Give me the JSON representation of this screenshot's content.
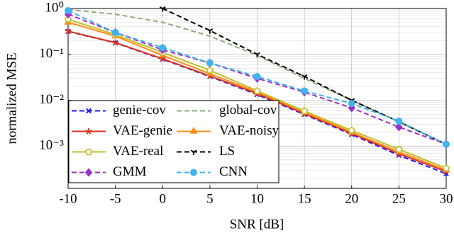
{
  "chart_data": {
    "type": "line",
    "xlabel": "SNR [dB]",
    "ylabel": "normalized MSE",
    "x": [
      -10,
      -5,
      0,
      5,
      10,
      15,
      20,
      25,
      30
    ],
    "xlim": [
      -10,
      30
    ],
    "xticks": [
      -10,
      -5,
      0,
      5,
      10,
      15,
      20,
      25,
      30
    ],
    "ylim": [
      0.00012,
      1
    ],
    "yticks": [
      {
        "value": 1,
        "label": "10⁰"
      },
      {
        "value": 0.1,
        "label": "10⁻¹"
      },
      {
        "value": 0.01,
        "label": "10⁻²"
      },
      {
        "value": 0.001,
        "label": "10⁻³"
      }
    ],
    "log_y": true,
    "grid": true,
    "legend": "lower left",
    "series": [
      {
        "name": "genie-cov",
        "color": "#1a1aff",
        "dash": true,
        "marker": "x",
        "values": [
          0.316,
          0.178,
          0.078,
          0.033,
          0.0133,
          0.0049,
          0.0018,
          0.00063,
          0.00025
        ]
      },
      {
        "name": "global-cov",
        "color": "#8fae7a",
        "dash": true,
        "marker": "none",
        "values": [
          0.95,
          0.75,
          0.5,
          0.25,
          0.095,
          0.03,
          0.01,
          0.0034,
          0.0011
        ]
      },
      {
        "name": "VAE-genie",
        "color": "#e0301e",
        "dash": false,
        "marker": "star",
        "values": [
          0.32,
          0.18,
          0.08,
          0.034,
          0.014,
          0.0051,
          0.0019,
          0.00068,
          0.00028
        ]
      },
      {
        "name": "VAE-noisy",
        "color": "#ff8c1a",
        "dash": false,
        "marker": "triangle",
        "values": [
          0.5,
          0.25,
          0.095,
          0.038,
          0.015,
          0.0055,
          0.002,
          0.00075,
          0.0003
        ]
      },
      {
        "name": "VAE-real",
        "color": "#bfbf26",
        "dash": false,
        "marker": "pentagon",
        "values": [
          0.58,
          0.27,
          0.11,
          0.045,
          0.016,
          0.0058,
          0.0022,
          0.00085,
          0.00033
        ]
      },
      {
        "name": "LS",
        "color": "#000000",
        "dash": true,
        "marker": "tri",
        "values": [
          null,
          null,
          1.0,
          0.33,
          0.1,
          0.033,
          0.01,
          0.0034,
          0.0011
        ]
      },
      {
        "name": "GMM",
        "color": "#9932cc",
        "dash": true,
        "marker": "diamond",
        "values": [
          0.75,
          0.3,
          0.125,
          0.065,
          0.03,
          0.015,
          0.0068,
          0.0026,
          0.0011
        ]
      },
      {
        "name": "CNN",
        "color": "#40b4ec",
        "dash": true,
        "marker": "circle",
        "values": [
          0.9,
          0.3,
          0.14,
          0.065,
          0.033,
          0.016,
          0.0085,
          0.0035,
          0.0011
        ]
      }
    ]
  }
}
